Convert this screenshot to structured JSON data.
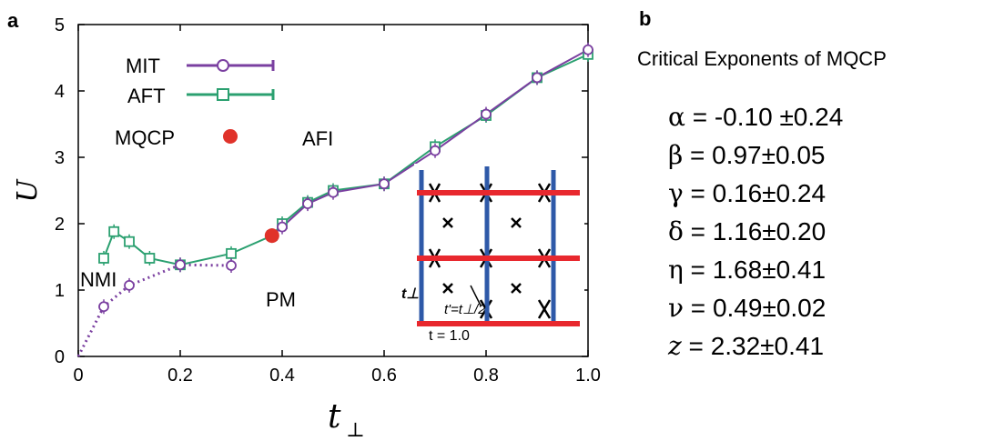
{
  "panel_a": {
    "label": "a",
    "x_tick_labels": [
      "0",
      "0.2",
      "0.4",
      "0.6",
      "0.8",
      "1.0"
    ],
    "y_tick_labels": [
      "0",
      "1",
      "2",
      "3",
      "4",
      "5"
    ],
    "xlabel_main": "t",
    "xlabel_sub": "⊥",
    "ylabel": "U",
    "region_labels": {
      "nmi": "NMI",
      "pm": "PM",
      "afi": "AFI"
    },
    "inset": {
      "t_perp": "t⊥",
      "t_prime": "t'=t⊥/2",
      "t": "t = 1.0"
    }
  },
  "chart_data": {
    "type": "line",
    "xlabel": "t⊥",
    "ylabel": "U",
    "xlim": [
      0,
      1.0
    ],
    "ylim": [
      0,
      5
    ],
    "legend_placement": "top-left",
    "series": [
      {
        "name": "MIT",
        "color": "#7a3fa0",
        "style": "dotted-then-solid, circle markers with error bars",
        "x": [
          0,
          0.05,
          0.1,
          0.2,
          0.3,
          0.4,
          0.45,
          0.5,
          0.6,
          0.7,
          0.8,
          0.9,
          1.0
        ],
        "y": [
          0,
          0.75,
          1.07,
          1.38,
          1.37,
          1.95,
          2.3,
          2.47,
          2.6,
          3.1,
          3.65,
          4.2,
          4.62
        ]
      },
      {
        "name": "AFT",
        "color": "#2ba070",
        "style": "solid, square markers with error bars",
        "x": [
          0.05,
          0.07,
          0.1,
          0.14,
          0.2,
          0.3,
          0.38,
          0.4,
          0.45,
          0.5,
          0.6,
          0.7,
          0.8,
          0.9,
          1.0
        ],
        "y": [
          1.48,
          1.88,
          1.73,
          1.48,
          1.38,
          1.55,
          1.82,
          2.0,
          2.32,
          2.5,
          2.6,
          3.16,
          3.63,
          4.2,
          4.55
        ]
      },
      {
        "name": "MQCP",
        "color": "#e0322a",
        "style": "filled circle",
        "x": [
          0.38
        ],
        "y": [
          1.82
        ]
      }
    ]
  },
  "panel_b": {
    "label": "b",
    "title": "Critical Exponents of MQCP",
    "exponents": [
      {
        "symbol": "α",
        "eq": " = ",
        "value": "-0.10 ±0.24",
        "italic": false
      },
      {
        "symbol": "β",
        "eq": " = ",
        "value": "0.97±0.05",
        "italic": false
      },
      {
        "symbol": "γ",
        "eq": " = ",
        "value": "0.16±0.24",
        "italic": false
      },
      {
        "symbol": "δ",
        "eq": " = ",
        "value": "1.16±0.20",
        "italic": false
      },
      {
        "symbol": "η",
        "eq": " = ",
        "value": "1.68±0.41",
        "italic": false
      },
      {
        "symbol": "ν",
        "eq": " = ",
        "value": "0.49±0.02",
        "italic": false
      },
      {
        "symbol": "z",
        "eq": " = ",
        "value": "2.32±0.41",
        "italic": true
      }
    ]
  }
}
